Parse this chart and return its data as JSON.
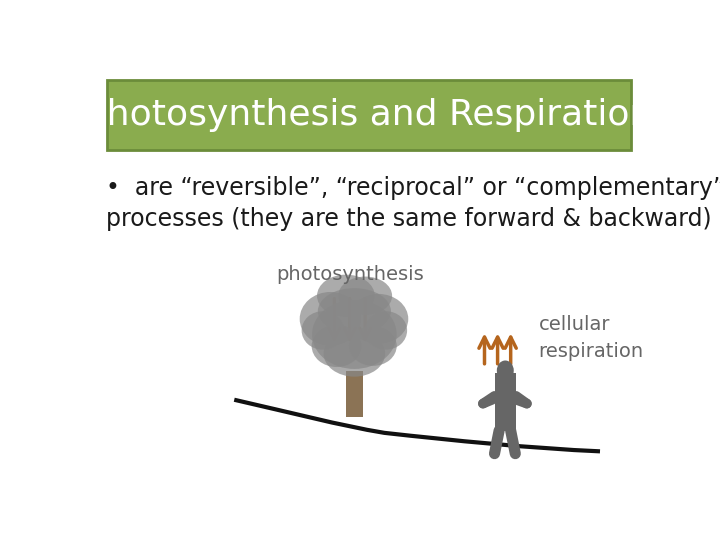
{
  "bg_color": "#ffffff",
  "header_bg": "#8aac4e",
  "header_border": "#6b8c3a",
  "header_text": "Photosynthesis and Respiration",
  "header_text_color": "#ffffff",
  "header_fontsize": 26,
  "bullet_line1": "•  are “reversible”, “reciprocal” or “complementary”",
  "bullet_line2": "    processes (they are the same forward & backward)",
  "bullet_fontsize": 17,
  "bullet_color": "#1a1a1a",
  "photo_label": "photosynthesis",
  "resp_label": "cellular\nrespiration",
  "label_color": "#666666",
  "label_fontsize": 14,
  "arrow_color": "#b5651d",
  "tree_color": "#888888",
  "trunk_color": "#7a6450",
  "ground_color": "#111111",
  "person_color": "#666666"
}
